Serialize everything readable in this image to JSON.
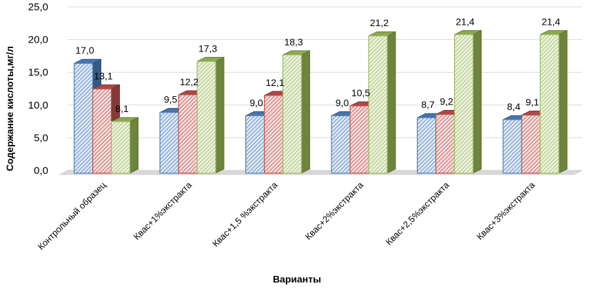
{
  "chart_data": {
    "type": "bar",
    "title": "",
    "xlabel": "Варианты",
    "ylabel": "Содержание кислоты,мг/л",
    "ylim": [
      0,
      25
    ],
    "yticks": [
      "0,0",
      "5,0",
      "10,0",
      "15,0",
      "20,0",
      "25,0"
    ],
    "categories": [
      "Контрольный образец",
      "Квас+1%экстракта",
      "Квас+1,5 %экстракта",
      "Квас+2%экстракта",
      "Квас+2,5%экстракта",
      "Квас+3%экстракта"
    ],
    "series": [
      {
        "name": "series-1",
        "values": [
          17.0,
          9.5,
          9.0,
          9.0,
          8.7,
          8.4
        ],
        "labels": [
          "17,0",
          "9,5",
          "9,0",
          "9,0",
          "8,7",
          "8,4"
        ],
        "color": "#4f81bd"
      },
      {
        "name": "series-2",
        "values": [
          13.1,
          12.2,
          12.1,
          10.5,
          9.2,
          9.1
        ],
        "labels": [
          "13,1",
          "12,2",
          "12,1",
          "10,5",
          "9,2",
          "9,1"
        ],
        "color": "#c0504d"
      },
      {
        "name": "series-3",
        "values": [
          8.1,
          17.3,
          18.3,
          21.2,
          21.4,
          21.4
        ],
        "labels": [
          "8,1",
          "17,3",
          "18,3",
          "21,2",
          "21,4",
          "21,4"
        ],
        "color": "#9bbb59"
      }
    ],
    "grid": true,
    "legend": "none"
  }
}
